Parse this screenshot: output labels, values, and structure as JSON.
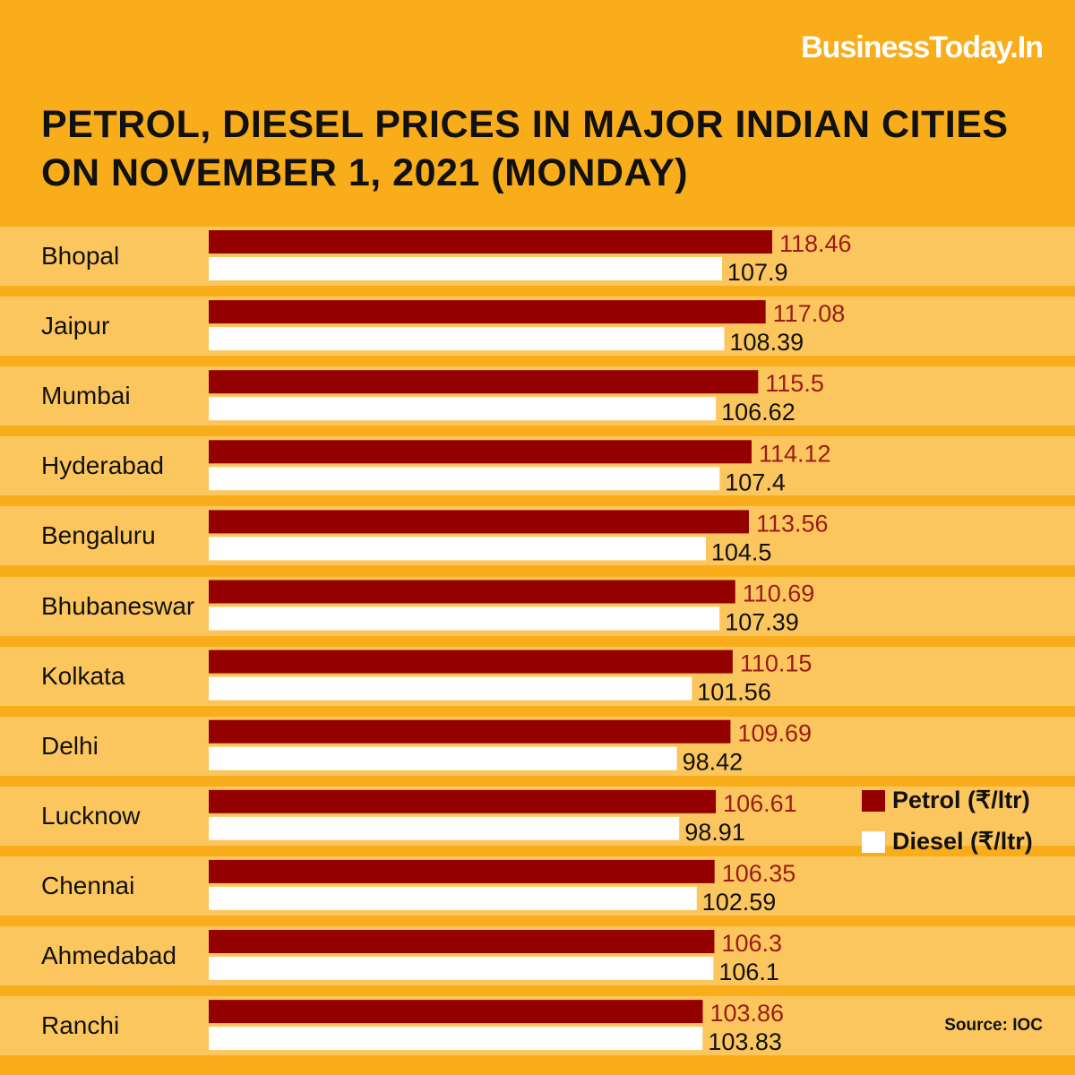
{
  "brand": "BusinessToday.In",
  "title": "PETROL, DIESEL PRICES IN MAJOR INDIAN CITIES ON NOVEMBER 1, 2021 (MONDAY)",
  "source": "Source: IOC",
  "legend": {
    "petrol_label": "Petrol (₹/ltr)",
    "diesel_label": "Diesel (₹/ltr)"
  },
  "colors": {
    "background": "#f9ad1a",
    "band": "#fcc65e",
    "petrol": "#940000",
    "diesel": "#ffffff",
    "petrol_value_text": "#9b1b16",
    "diesel_value_text": "#111111"
  },
  "chart_data": {
    "type": "bar",
    "orientation": "horizontal",
    "title": "PETROL, DIESEL PRICES IN MAJOR INDIAN CITIES ON NOVEMBER 1, 2021 (MONDAY)",
    "categories": [
      "Bhopal",
      "Jaipur",
      "Mumbai",
      "Hyderabad",
      "Bengaluru",
      "Bhubaneswar",
      "Kolkata",
      "Delhi",
      "Lucknow",
      "Chennai",
      "Ahmedabad",
      "Ranchi"
    ],
    "series": [
      {
        "name": "Petrol (₹/ltr)",
        "values": [
          118.46,
          117.08,
          115.5,
          114.12,
          113.56,
          110.69,
          110.15,
          109.69,
          106.61,
          106.35,
          106.3,
          103.86
        ],
        "labels": [
          "118.46",
          "117.08",
          "115.5",
          "114.12",
          "113.56",
          "110.69",
          "110.15",
          "109.69",
          "106.61",
          "106.35",
          "106.3",
          "103.86"
        ]
      },
      {
        "name": "Diesel (₹/ltr)",
        "values": [
          107.9,
          108.39,
          106.62,
          107.4,
          104.5,
          107.39,
          101.56,
          98.42,
          98.91,
          102.59,
          106.1,
          103.83
        ],
        "labels": [
          "107.9",
          "108.39",
          "106.62",
          "107.4",
          "104.5",
          "107.39",
          "101.56",
          "98.42",
          "98.91",
          "102.59",
          "106.1",
          "103.83"
        ]
      }
    ],
    "xlim": [
      0,
      118.46
    ],
    "legend_position": "right",
    "grid": false
  }
}
